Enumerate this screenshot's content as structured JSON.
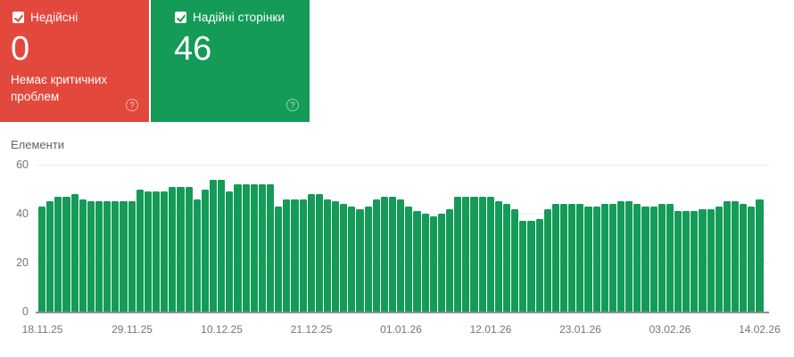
{
  "cards": {
    "invalid": {
      "label": "Недійсні",
      "count": "0",
      "subtitle": "Немає критичних проблем",
      "color": "#e3483c",
      "checked": true
    },
    "valid": {
      "label": "Надійні сторінки",
      "count": "46",
      "color": "#149b58",
      "checked": true
    }
  },
  "icons": {
    "help": "?"
  },
  "chart_data": {
    "type": "bar",
    "title": "",
    "xlabel": "",
    "ylabel": "Елементи",
    "ylim": [
      0,
      60
    ],
    "yticks": [
      0,
      20,
      40,
      60
    ],
    "grid": "horizontal",
    "legend": "none",
    "bar_color": "#149b58",
    "x_tick_labels": [
      "18.11.25",
      "29.11.25",
      "10.12.25",
      "21.12.25",
      "01.01.26",
      "12.01.26",
      "23.01.26",
      "03.02.26",
      "14.02.26"
    ],
    "x_tick_every": 11,
    "values": [
      43,
      45,
      47,
      47,
      48,
      46,
      45,
      45,
      45,
      45,
      45,
      45,
      50,
      49,
      49,
      49,
      51,
      51,
      51,
      46,
      50,
      54,
      54,
      49,
      52,
      52,
      52,
      52,
      52,
      43,
      46,
      46,
      46,
      48,
      48,
      46,
      45,
      44,
      43,
      42,
      43,
      46,
      47,
      47,
      46,
      43,
      41,
      40,
      39,
      40,
      42,
      47,
      47,
      47,
      47,
      47,
      45,
      44,
      42,
      37,
      37,
      38,
      42,
      44,
      44,
      44,
      44,
      43,
      43,
      44,
      44,
      45,
      45,
      44,
      43,
      43,
      44,
      44,
      41,
      41,
      41,
      42,
      42,
      43,
      45,
      45,
      44,
      43,
      46
    ]
  }
}
